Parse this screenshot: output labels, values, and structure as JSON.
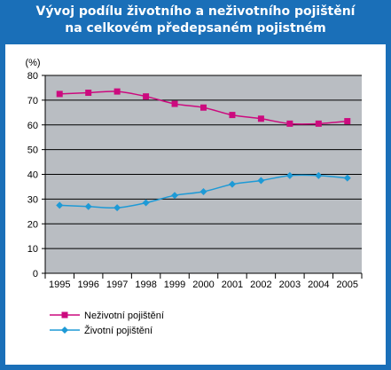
{
  "title_line1": "Vývoj podílu životního a neživotního pojištění",
  "title_line2": "na celkovém předepsaném pojistném",
  "chart_data": {
    "type": "line",
    "x": [
      "1995",
      "1996",
      "1997",
      "1998",
      "1999",
      "2000",
      "2001",
      "2002",
      "2003",
      "2004",
      "2005"
    ],
    "ylabel": "(%)",
    "ylim": [
      0,
      80
    ],
    "yticks": [
      0,
      10,
      20,
      30,
      40,
      50,
      60,
      70,
      80
    ],
    "grid": true,
    "legend": "bottom-left",
    "plot_background": "#b9bdc2",
    "series": [
      {
        "name": "Neživotní pojištění",
        "color": "#cc0a7e",
        "marker": "square",
        "values": [
          72.5,
          73,
          73.5,
          71.5,
          68.5,
          67,
          64,
          62.5,
          60.5,
          60.5,
          61.5
        ]
      },
      {
        "name": "Životní pojištění",
        "color": "#1e9ad6",
        "marker": "diamond",
        "values": [
          27.5,
          27,
          26.5,
          28.5,
          31.5,
          33,
          36,
          37.5,
          39.5,
          39.5,
          38.5
        ]
      }
    ]
  }
}
